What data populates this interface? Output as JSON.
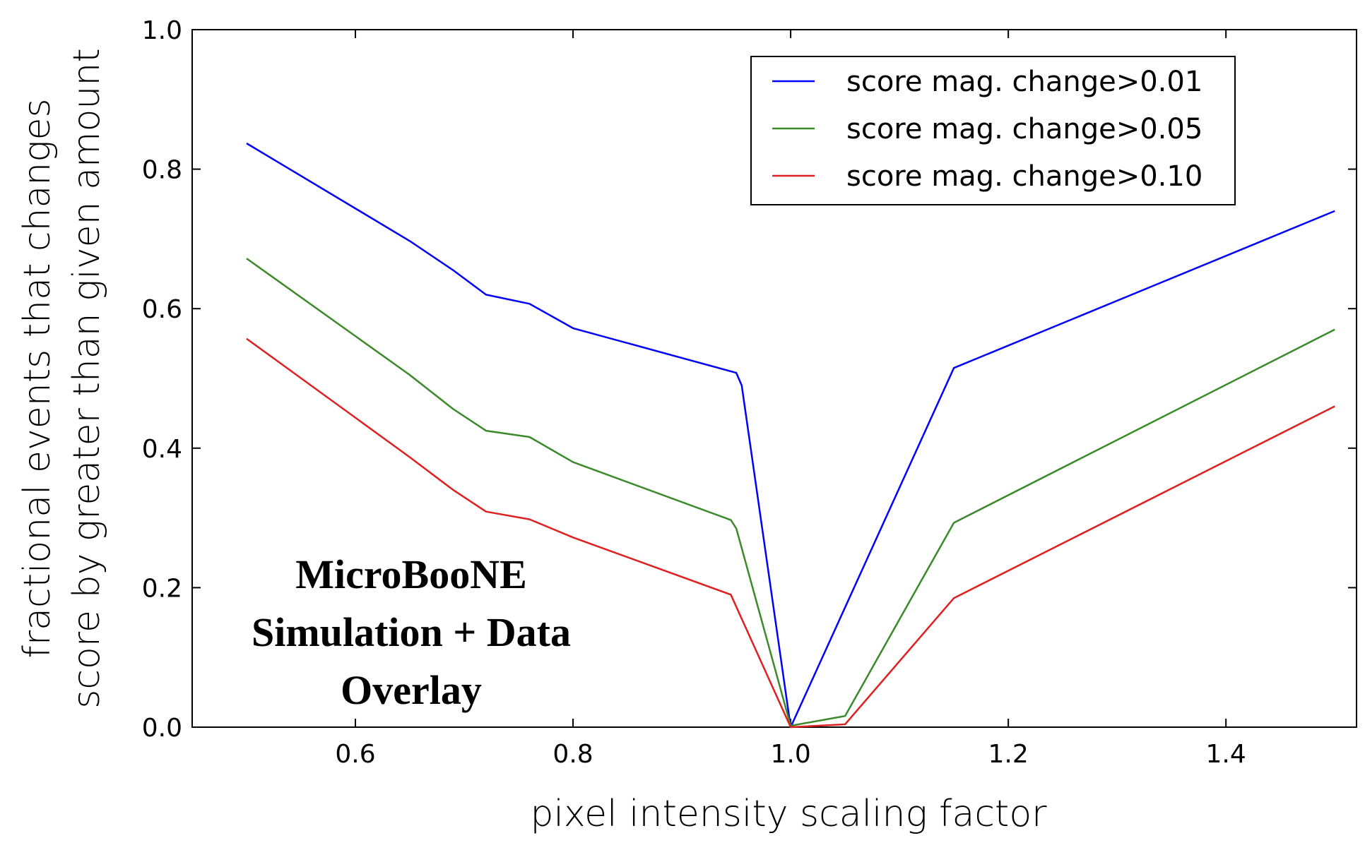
{
  "chart_data": {
    "type": "line",
    "title": "",
    "xlabel": "pixel intensity scaling factor",
    "ylabel_lines": [
      "fractional events that changes",
      "score by greater than given amount"
    ],
    "xlim": [
      0.45,
      1.52
    ],
    "ylim": [
      0.0,
      1.0
    ],
    "xticks": [
      0.6,
      0.8,
      1.0,
      1.2,
      1.4
    ],
    "xtick_labels": [
      "0.6",
      "0.8",
      "1.0",
      "1.2",
      "1.4"
    ],
    "yticks": [
      0.0,
      0.2,
      0.4,
      0.6,
      0.8,
      1.0
    ],
    "ytick_labels": [
      "0.0",
      "0.2",
      "0.4",
      "0.6",
      "0.8",
      "1.0"
    ],
    "grid": false,
    "legend_position": "top-right",
    "series": [
      {
        "name": "score mag. change>0.01",
        "color": "#0000ff",
        "x": [
          0.5,
          0.65,
          0.69,
          0.72,
          0.76,
          0.8,
          0.95,
          0.955,
          1.0,
          1.15,
          1.5
        ],
        "y": [
          0.837,
          0.697,
          0.655,
          0.62,
          0.607,
          0.572,
          0.508,
          0.49,
          0.0,
          0.515,
          0.74
        ]
      },
      {
        "name": "score mag. change>0.05",
        "color": "#3a8a2a",
        "x": [
          0.5,
          0.65,
          0.69,
          0.72,
          0.76,
          0.8,
          0.945,
          0.95,
          1.0,
          1.05,
          1.15,
          1.5
        ],
        "y": [
          0.672,
          0.505,
          0.456,
          0.425,
          0.416,
          0.38,
          0.297,
          0.285,
          0.002,
          0.016,
          0.293,
          0.57
        ]
      },
      {
        "name": "score mag. change>0.10",
        "color": "#e02020",
        "x": [
          0.5,
          0.65,
          0.69,
          0.72,
          0.76,
          0.8,
          0.945,
          1.0,
          1.05,
          1.15,
          1.5
        ],
        "y": [
          0.557,
          0.387,
          0.34,
          0.309,
          0.298,
          0.272,
          0.19,
          0.0,
          0.004,
          0.185,
          0.46
        ]
      }
    ],
    "annotation_lines": [
      "MicroBooNE",
      "Simulation + Data",
      "Overlay"
    ]
  }
}
